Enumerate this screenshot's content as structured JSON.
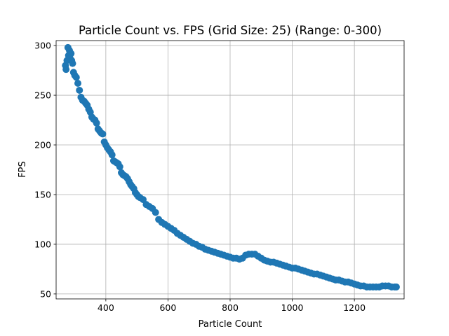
{
  "chart_data": {
    "type": "scatter",
    "title": "Particle Count vs. FPS (Grid Size: 25) (Range: 0-300)",
    "xlabel": "Particle Count",
    "ylabel": "FPS",
    "xlim": [
      240,
      1360
    ],
    "ylim": [
      45,
      305
    ],
    "xticks": [
      400,
      600,
      800,
      1000,
      1200
    ],
    "yticks": [
      50,
      100,
      150,
      200,
      250,
      300
    ],
    "grid": true,
    "marker_color": "#1f77b4",
    "x": [
      270,
      272,
      275,
      278,
      280,
      283,
      285,
      288,
      290,
      293,
      296,
      300,
      305,
      310,
      315,
      320,
      325,
      330,
      335,
      340,
      345,
      350,
      355,
      360,
      365,
      370,
      375,
      380,
      385,
      390,
      395,
      400,
      405,
      410,
      415,
      420,
      425,
      430,
      435,
      440,
      445,
      450,
      455,
      460,
      465,
      470,
      475,
      480,
      485,
      490,
      495,
      500,
      505,
      510,
      520,
      530,
      540,
      550,
      560,
      570,
      580,
      590,
      600,
      610,
      620,
      630,
      640,
      650,
      660,
      670,
      680,
      690,
      700,
      710,
      720,
      730,
      740,
      750,
      760,
      770,
      780,
      790,
      800,
      810,
      820,
      830,
      840,
      850,
      860,
      870,
      880,
      890,
      900,
      910,
      920,
      930,
      940,
      950,
      960,
      970,
      980,
      990,
      1000,
      1010,
      1020,
      1030,
      1040,
      1050,
      1060,
      1070,
      1080,
      1090,
      1100,
      1110,
      1120,
      1130,
      1140,
      1150,
      1160,
      1170,
      1180,
      1190,
      1200,
      1210,
      1220,
      1230,
      1240,
      1250,
      1260,
      1270,
      1280,
      1290,
      1300,
      1310,
      1320,
      1330,
      1335
    ],
    "y": [
      280,
      276,
      285,
      298,
      290,
      295,
      287,
      292,
      285,
      282,
      273,
      270,
      268,
      262,
      255,
      248,
      245,
      244,
      242,
      240,
      236,
      233,
      228,
      226,
      225,
      222,
      216,
      214,
      212,
      211,
      203,
      200,
      197,
      195,
      193,
      190,
      184,
      183,
      182,
      181,
      178,
      172,
      170,
      169,
      168,
      166,
      163,
      160,
      158,
      156,
      152,
      150,
      148,
      147,
      145,
      140,
      138,
      136,
      132,
      125,
      122,
      120,
      118,
      116,
      114,
      111,
      109,
      107,
      105,
      103,
      101,
      100,
      98,
      97,
      95,
      94,
      93,
      92,
      91,
      90,
      89,
      88,
      87,
      86,
      86,
      85,
      86,
      89,
      90,
      90,
      90,
      88,
      86,
      84,
      83,
      82,
      82,
      81,
      80,
      79,
      78,
      77,
      76,
      76,
      75,
      74,
      73,
      72,
      71,
      70,
      70,
      69,
      68,
      67,
      66,
      65,
      64,
      64,
      63,
      62,
      62,
      61,
      60,
      59,
      58,
      58,
      57,
      57,
      57,
      57,
      57,
      58,
      58,
      58,
      57,
      57,
      57
    ]
  }
}
